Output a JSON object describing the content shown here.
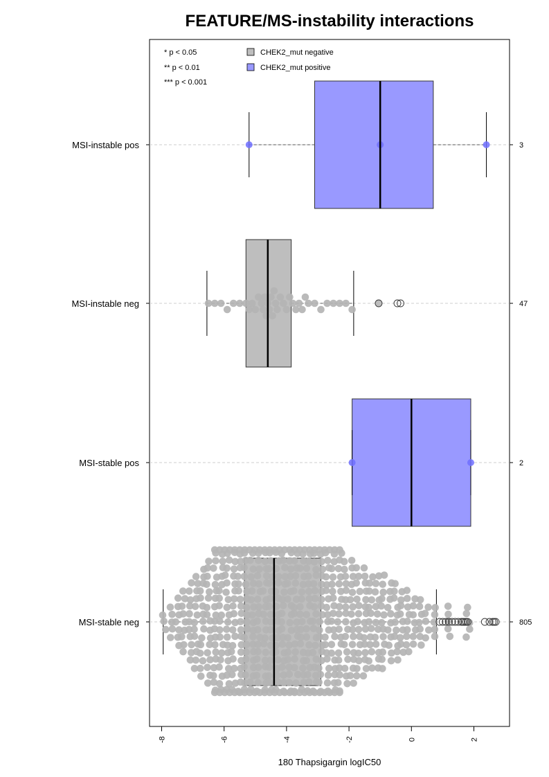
{
  "chart_data": {
    "type": "boxplot",
    "title": "FEATURE/MS-instability interactions",
    "xlabel": "180 Thapsigargin logIC50",
    "xlim": [
      -8.4,
      3.1
    ],
    "xticks": [
      -8,
      -6,
      -4,
      -2,
      0,
      2
    ],
    "xtick_labels": [
      "-8",
      "-6",
      "-4",
      "-2",
      "0",
      "2"
    ],
    "significance_legend": [
      "* p < 0.05",
      "** p < 0.01",
      "*** p < 0.001"
    ],
    "legend": [
      {
        "label": "CHEK2_mut negative",
        "color": "#bebebe"
      },
      {
        "label": "CHEK2_mut positive",
        "color": "#9999ff"
      }
    ],
    "groups": [
      {
        "label": "MSI-instable pos",
        "n": "3",
        "mutation": "positive",
        "whisker_low": -5.2,
        "q1": -3.1,
        "median": -1.0,
        "q3": 0.7,
        "whisker_high": 2.4,
        "points": [
          -5.2,
          -1.0,
          2.4
        ],
        "outliers": []
      },
      {
        "label": "MSI-instable neg",
        "n": "47",
        "mutation": "negative",
        "whisker_low": -6.55,
        "q1": -5.3,
        "median": -4.6,
        "q3": -3.85,
        "whisker_high": -1.85,
        "points": [
          -6.5,
          -6.3,
          -6.1,
          -5.9,
          -5.7,
          -5.5,
          -5.3,
          -5.2,
          -5.1,
          -5.0,
          -4.9,
          -4.8,
          -4.75,
          -4.7,
          -4.65,
          -4.6,
          -4.55,
          -4.5,
          -4.45,
          -4.4,
          -4.35,
          -4.3,
          -4.2,
          -4.1,
          -4.0,
          -3.9,
          -3.8,
          -3.7,
          -3.6,
          -3.5,
          -3.4,
          -3.3,
          -3.1,
          -2.9,
          -2.7,
          -2.5,
          -2.3,
          -2.1,
          -1.9
        ],
        "outliers": [
          -1.05,
          -0.45,
          -0.35
        ]
      },
      {
        "label": "MSI-stable pos",
        "n": "2",
        "mutation": "positive",
        "whisker_low": -1.9,
        "q1": -1.9,
        "median": 0.0,
        "q3": 1.9,
        "whisker_high": 1.9,
        "points": [
          -1.9,
          1.9
        ],
        "outliers": []
      },
      {
        "label": "MSI-stable neg",
        "n": "805",
        "mutation": "negative",
        "whisker_low": -7.95,
        "q1": -5.35,
        "median": -4.4,
        "q3": -2.9,
        "whisker_high": 0.8,
        "points": [],
        "outliers": [
          0.9,
          1.0,
          1.1,
          1.2,
          1.3,
          1.4,
          1.5,
          1.6,
          1.65,
          1.7,
          1.75,
          1.8,
          2.35,
          2.5,
          2.6,
          2.65,
          2.7
        ]
      }
    ]
  }
}
